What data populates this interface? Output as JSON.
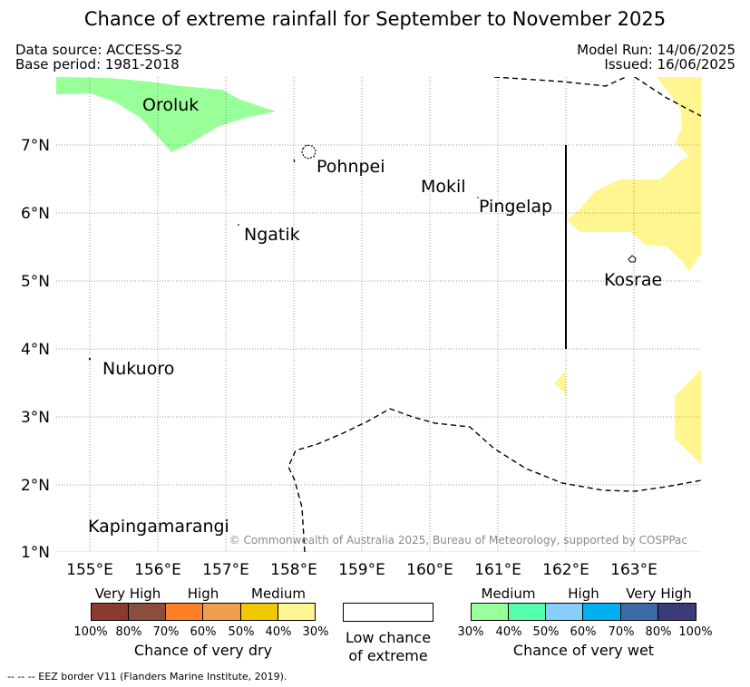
{
  "title": "Chance of extreme rainfall for September to November 2025",
  "header": {
    "data_source": "Data source: ACCESS-S2",
    "base_period": "Base period: 1981-2018",
    "model_run": "Model Run: 14/06/2025",
    "issued": "Issued: 16/06/2025"
  },
  "map": {
    "lon_ticks": [
      "155°E",
      "156°E",
      "157°E",
      "158°E",
      "159°E",
      "160°E",
      "161°E",
      "162°E",
      "163°E"
    ],
    "lat_ticks": [
      "1°N",
      "2°N",
      "3°N",
      "4°N",
      "5°N",
      "6°N",
      "7°N"
    ],
    "places": {
      "oroluk": "Oroluk",
      "pohnpei": "Pohnpei",
      "mokil": "Mokil",
      "pingelap": "Pingelap",
      "ngatik": "Ngatik",
      "kosrae": "Kosrae",
      "nukuoro": "Nukuoro",
      "kapingamarangi": "Kapingamarangi"
    },
    "copyright": "© Commonwealth of Australia 2025, Bureau of Meteorology, supported by COSPPac",
    "colors": {
      "wet_medium": "#99ff99",
      "dry_medium": "#fff68f",
      "grid": "#7f7f7f"
    }
  },
  "legend": {
    "dry": {
      "categories": [
        "Very High",
        "High",
        "Medium"
      ],
      "colors": [
        "#8b3a2f",
        "#8b4e3c",
        "#ff7f27",
        "#f0a04b",
        "#f0c800",
        "#fff68f"
      ],
      "percents": [
        "100%",
        "80%",
        "70%",
        "60%",
        "50%",
        "40%",
        "30%"
      ],
      "title": "Chance of very dry"
    },
    "low": {
      "line1": "Low chance",
      "line2": "of extreme"
    },
    "wet": {
      "categories": [
        "Medium",
        "High",
        "Very High"
      ],
      "colors": [
        "#99ff99",
        "#55ffaa",
        "#87cefa",
        "#00b0f0",
        "#3a6aa8",
        "#3b3b7a"
      ],
      "percents": [
        "30%",
        "40%",
        "50%",
        "60%",
        "70%",
        "80%",
        "100%"
      ],
      "title": "Chance of very wet"
    }
  },
  "footnote": "-- -- -- EEZ border V11 (Flanders Marine Institute, 2019)."
}
